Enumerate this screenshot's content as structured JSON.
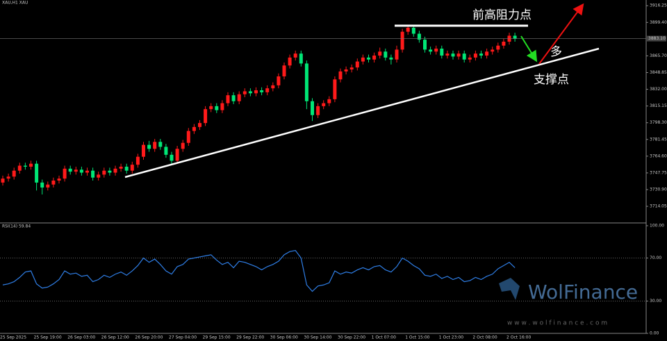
{
  "chart_data": [
    {
      "type": "candlestick",
      "title": "XAU,H1 XAU",
      "categories": [
        "25 Sep 2025",
        null,
        null,
        null,
        null,
        null,
        "25 Sep 19:00",
        null,
        null,
        null,
        null,
        null,
        "26 Sep 03:00",
        null,
        null,
        null,
        null,
        null,
        "26 Sep 12:00",
        null,
        null,
        null,
        null,
        null,
        "26 Sep 20:00",
        null,
        null,
        null,
        null,
        null,
        "27 Sep 04:00",
        null,
        null,
        null,
        null,
        null,
        "29 Sep 15:00",
        null,
        null,
        null,
        null,
        null,
        "29 Sep 22:00",
        null,
        null,
        null,
        null,
        null,
        "30 Sep 06:00",
        null,
        null,
        null,
        null,
        null,
        "30 Sep 14:00",
        null,
        null,
        null,
        null,
        null,
        "30 Sep 22:00",
        null,
        null,
        null,
        null,
        null,
        "1 Oct 07:00",
        null,
        null,
        null,
        null,
        null,
        "1 Oct 15:00",
        null,
        null,
        null,
        null,
        null,
        "1 Oct 23:00",
        null,
        null,
        null,
        null,
        null,
        "2 Oct 08:00",
        null,
        null,
        null,
        null,
        null,
        "2 Oct 16:00",
        null
      ],
      "open": [
        3738,
        3742,
        3744,
        3750,
        3755,
        3754,
        3757,
        3738,
        3733,
        3736,
        3740,
        3742,
        3752,
        3749,
        3751,
        3748,
        3750,
        3743,
        3746,
        3750,
        3748,
        3752,
        3754,
        3750,
        3756,
        3764,
        3776,
        3772,
        3779,
        3774,
        3766,
        3760,
        3772,
        3778,
        3790,
        3794,
        3798,
        3812,
        3815,
        3811,
        3818,
        3826,
        3820,
        3827,
        3830,
        3828,
        3831,
        3829,
        3833,
        3836,
        3845,
        3856,
        3864,
        3868,
        3858,
        3820,
        3806,
        3815,
        3818,
        3822,
        3842,
        3850,
        3852,
        3854,
        3860,
        3864,
        3862,
        3866,
        3870,
        3864,
        3862,
        3872,
        3890,
        3894,
        3888,
        3882,
        3872,
        3870,
        3873,
        3866,
        3868,
        3865,
        3868,
        3862,
        3864,
        3868,
        3866,
        3870,
        3872,
        3876,
        3880,
        3886
      ],
      "high": [
        3745,
        3747,
        3753,
        3758,
        3758,
        3760,
        3760,
        3741,
        3739,
        3743,
        3745,
        3755,
        3755,
        3754,
        3754,
        3753,
        3753,
        3749,
        3753,
        3753,
        3755,
        3757,
        3757,
        3759,
        3767,
        3779,
        3780,
        3782,
        3782,
        3777,
        3769,
        3775,
        3781,
        3793,
        3797,
        3801,
        3815,
        3818,
        3818,
        3821,
        3829,
        3829,
        3830,
        3833,
        3833,
        3834,
        3834,
        3836,
        3839,
        3848,
        3859,
        3867,
        3871,
        3871,
        3861,
        3823,
        3818,
        3821,
        3825,
        3845,
        3853,
        3855,
        3857,
        3863,
        3867,
        3867,
        3869,
        3874,
        3873,
        3867,
        3876,
        3893,
        3897,
        3897,
        3891,
        3885,
        3875,
        3876,
        3876,
        3871,
        3871,
        3871,
        3871,
        3867,
        3871,
        3871,
        3873,
        3875,
        3879,
        3883,
        3889,
        3889
      ],
      "low": [
        3735,
        3739,
        3741,
        3747,
        3751,
        3751,
        3730,
        3726,
        3730,
        3733,
        3737,
        3739,
        3746,
        3746,
        3745,
        3745,
        3740,
        3740,
        3743,
        3745,
        3745,
        3749,
        3747,
        3747,
        3753,
        3761,
        3769,
        3769,
        3771,
        3763,
        3756,
        3757,
        3769,
        3775,
        3787,
        3791,
        3795,
        3809,
        3808,
        3808,
        3815,
        3817,
        3817,
        3824,
        3825,
        3825,
        3826,
        3826,
        3830,
        3833,
        3842,
        3853,
        3861,
        3855,
        3812,
        3800,
        3803,
        3812,
        3815,
        3819,
        3839,
        3847,
        3849,
        3851,
        3857,
        3859,
        3859,
        3863,
        3861,
        3857,
        3859,
        3869,
        3887,
        3885,
        3879,
        3869,
        3867,
        3867,
        3863,
        3863,
        3862,
        3862,
        3859,
        3859,
        3861,
        3863,
        3863,
        3867,
        3869,
        3873,
        3877,
        3880
      ],
      "close": [
        3742,
        3744,
        3750,
        3755,
        3754,
        3757,
        3738,
        3733,
        3736,
        3740,
        3742,
        3752,
        3749,
        3751,
        3748,
        3750,
        3743,
        3746,
        3750,
        3748,
        3752,
        3754,
        3750,
        3756,
        3764,
        3776,
        3772,
        3779,
        3774,
        3766,
        3760,
        3772,
        3778,
        3790,
        3794,
        3798,
        3812,
        3815,
        3811,
        3818,
        3826,
        3820,
        3827,
        3830,
        3828,
        3831,
        3829,
        3833,
        3836,
        3845,
        3856,
        3864,
        3868,
        3858,
        3820,
        3806,
        3815,
        3818,
        3822,
        3842,
        3850,
        3852,
        3854,
        3860,
        3864,
        3862,
        3866,
        3870,
        3864,
        3862,
        3872,
        3890,
        3894,
        3888,
        3882,
        3872,
        3870,
        3873,
        3866,
        3868,
        3865,
        3868,
        3862,
        3864,
        3868,
        3866,
        3870,
        3872,
        3876,
        3880,
        3886,
        3883
      ],
      "up_color": "#ff1a1a",
      "down_color": "#00e676",
      "ylim": [
        3698,
        3922
      ],
      "yticks": [
        3916.25,
        {
          "value": 3899.4,
          "label": "3899.40"
        },
        {
          "value": 3865.7,
          "label": "3865.70"
        },
        3848.85,
        {
          "value": 3832,
          "label": "3832.00"
        },
        3815.15,
        {
          "value": 3798.3,
          "label": "3798.30"
        },
        3781.45,
        {
          "value": 3764.6,
          "label": "3764.60"
        },
        3747.75,
        {
          "value": 3730.9,
          "label": "3730.90"
        },
        3714.05
      ],
      "last_price": {
        "value": 3883.1,
        "label": "3883.10"
      },
      "annotations": {
        "resistance": "前高阻力点",
        "support": "支撑点",
        "long": "多"
      }
    },
    {
      "type": "line",
      "title": "RSI(14) 59.84",
      "values": [
        45,
        46,
        48,
        52,
        57,
        58,
        46,
        42,
        43,
        46,
        50,
        58,
        55,
        56,
        53,
        54,
        48,
        50,
        54,
        52,
        55,
        57,
        54,
        58,
        63,
        70,
        66,
        69,
        64,
        58,
        55,
        62,
        64,
        69,
        70,
        71,
        72,
        73,
        68,
        64,
        66,
        61,
        67,
        66,
        64,
        62,
        59,
        62,
        64,
        67,
        73,
        76,
        77,
        70,
        45,
        39,
        44,
        45,
        47,
        58,
        55,
        57,
        56,
        59,
        61,
        59,
        62,
        63,
        59,
        57,
        62,
        70,
        67,
        63,
        60,
        54,
        53,
        55,
        51,
        53,
        50,
        52,
        48,
        49,
        52,
        50,
        53,
        55,
        60,
        63,
        66,
        61
      ],
      "color": "#2f7fe8",
      "ylim": [
        0,
        100
      ],
      "yticks": [
        {
          "value": 100,
          "label": "100.00"
        },
        {
          "value": 70,
          "label": "70.00"
        },
        {
          "value": 30,
          "label": "30.00"
        },
        {
          "value": 0,
          "label": "0.00"
        }
      ],
      "levels": [
        70,
        30
      ]
    }
  ],
  "watermark": {
    "brand": "WolFinance",
    "url": "w w w . w o l f i n a n c e . c o m"
  }
}
